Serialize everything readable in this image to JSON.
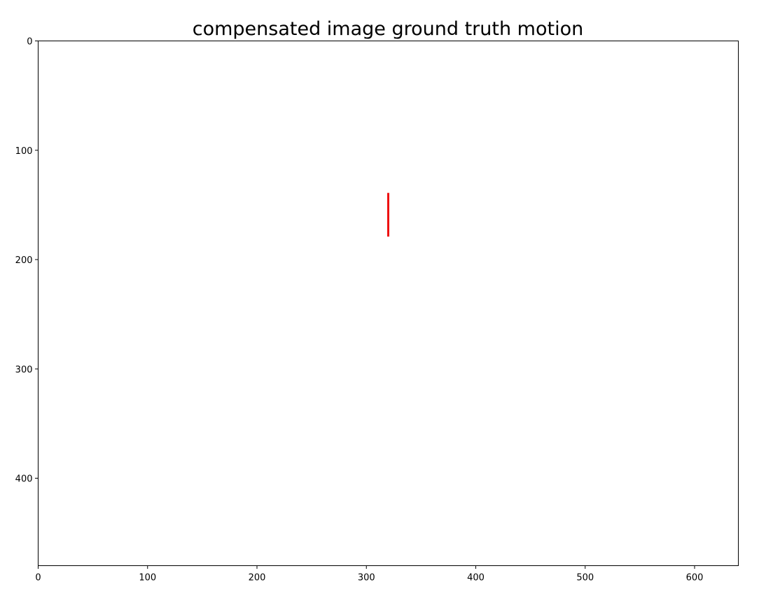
{
  "chart_data": {
    "type": "line",
    "title": "compensated image ground truth motion",
    "xlabel": "",
    "ylabel": "",
    "xlim": [
      0,
      640
    ],
    "ylim": [
      480,
      0
    ],
    "y_inverted": true,
    "grid": false,
    "x_ticks": [
      "0",
      "100",
      "200",
      "300",
      "400",
      "500",
      "600"
    ],
    "y_ticks": [
      "0",
      "100",
      "200",
      "300",
      "400"
    ],
    "series": [
      {
        "color": "#ee1111",
        "points": [
          {
            "x": 320,
            "y": 139
          },
          {
            "x": 320,
            "y": 179
          }
        ]
      }
    ]
  }
}
